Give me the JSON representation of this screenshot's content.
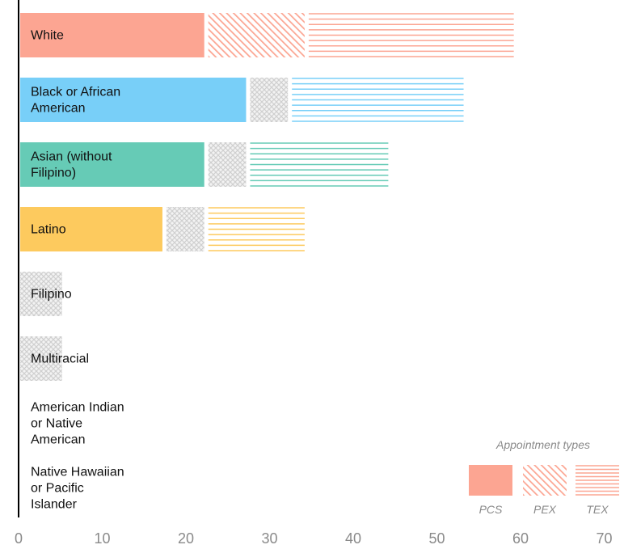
{
  "chart_data": {
    "type": "bar",
    "orientation": "horizontal",
    "stacked": true,
    "categories": [
      "White",
      "Black or African American",
      "Asian (without Filipino)",
      "Latino",
      "Filipino",
      "Multiracial",
      "American Indian or Native American",
      "Native Hawaiian or Pacific Islander"
    ],
    "category_lines": [
      [
        "White"
      ],
      [
        "Black or African",
        "American"
      ],
      [
        "Asian (without",
        "Filipino)"
      ],
      [
        "Latino"
      ],
      [
        "Filipino"
      ],
      [
        "Multiracial"
      ],
      [
        "American Indian",
        "or Native",
        "American"
      ],
      [
        "Native Hawaiian",
        "or Pacific",
        "Islander"
      ]
    ],
    "category_colors": [
      "#fca592",
      "#78cff8",
      "#66cbb6",
      "#fdca5e",
      "#bbbbbb",
      "#bbbbbb",
      "#bbbbbb",
      "#bbbbbb"
    ],
    "series": [
      {
        "name": "PCS",
        "values": [
          22,
          27,
          22,
          17,
          0,
          0,
          0,
          0
        ]
      },
      {
        "name": "PEX",
        "values": [
          12,
          5,
          5,
          5,
          5,
          5,
          0,
          0
        ]
      },
      {
        "name": "TEX",
        "values": [
          25,
          21,
          17,
          12,
          0,
          0,
          0,
          0
        ]
      }
    ],
    "series_style": {
      "PCS": "solid",
      "PEX": "diagonal-hatch (gray cross-hatch when color-matched missing)",
      "TEX": "horizontal-lines"
    },
    "xlim": [
      0,
      70
    ],
    "xticks": [
      "0",
      "10",
      "20",
      "30",
      "40",
      "50",
      "60",
      "70"
    ],
    "legend": {
      "title": "Appointment types",
      "placement": "bottom-right",
      "color": "#fca592",
      "entries": [
        "PCS",
        "PEX",
        "TEX"
      ]
    },
    "grid": false
  }
}
